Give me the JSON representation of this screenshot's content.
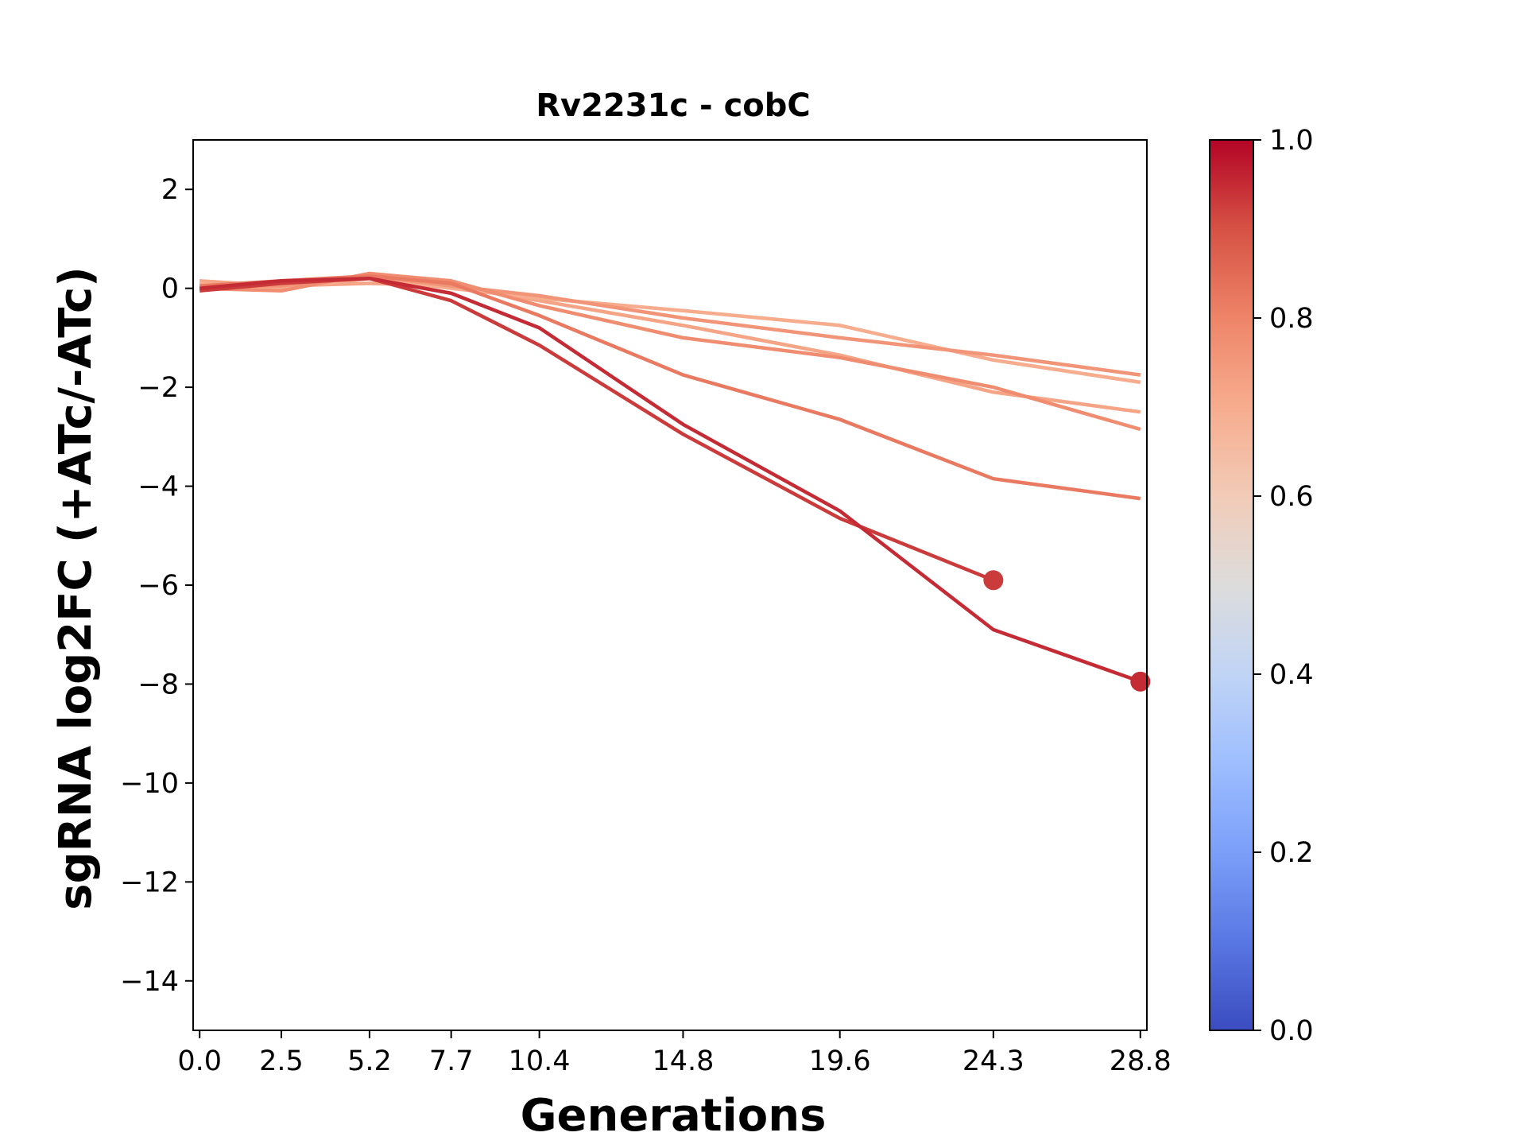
{
  "chart_data": {
    "type": "line",
    "title": "Rv2231c - cobC",
    "xlabel": "Generations",
    "ylabel": "sgRNA log2FC (+ATc/-ATc)",
    "x_tick_labels": [
      "0.0",
      "2.5",
      "5.2",
      "7.7",
      "10.4",
      "14.8",
      "19.6",
      "24.3",
      "28.8"
    ],
    "x": [
      0.0,
      2.5,
      5.2,
      7.7,
      10.4,
      14.8,
      19.6,
      24.3,
      28.8
    ],
    "xlim": [
      -0.2,
      29.0
    ],
    "ylim": [
      -15,
      3
    ],
    "y_ticks": [
      2,
      0,
      -2,
      -4,
      -6,
      -8,
      -10,
      -12,
      -14
    ],
    "y_tick_labels": [
      "2",
      "0",
      "−2",
      "−4",
      "−6",
      "−8",
      "−10",
      "−12",
      "−14"
    ],
    "grid": false,
    "series": [
      {
        "color_value": 0.72,
        "values": [
          0.15,
          0.05,
          0.1,
          0.05,
          -0.25,
          -0.75,
          -1.35,
          -2.1,
          -2.5
        ],
        "endpoint_marker": false
      },
      {
        "color_value": 0.7,
        "values": [
          0.1,
          0.0,
          0.2,
          0.0,
          -0.2,
          -0.45,
          -0.75,
          -1.45,
          -1.9
        ],
        "endpoint_marker": false
      },
      {
        "color_value": 0.76,
        "values": [
          0.05,
          0.05,
          0.25,
          0.05,
          -0.15,
          -0.6,
          -1.0,
          -1.35,
          -1.75
        ],
        "endpoint_marker": false
      },
      {
        "color_value": 0.78,
        "values": [
          0.0,
          -0.05,
          0.3,
          0.15,
          -0.35,
          -1.0,
          -1.4,
          -2.0,
          -2.85
        ],
        "endpoint_marker": false
      },
      {
        "color_value": 0.82,
        "values": [
          0.05,
          0.15,
          0.25,
          0.1,
          -0.55,
          -1.75,
          -2.65,
          -3.85,
          -4.25
        ],
        "endpoint_marker": false
      },
      {
        "color_value": 0.93,
        "values": [
          -0.05,
          0.1,
          0.2,
          -0.25,
          -1.15,
          -2.95,
          -4.65,
          -5.9,
          null
        ],
        "endpoint_marker": true
      },
      {
        "color_value": 0.95,
        "values": [
          0.0,
          0.15,
          0.2,
          -0.1,
          -0.8,
          -2.75,
          -4.5,
          -6.9,
          -7.95
        ],
        "endpoint_marker": true
      }
    ],
    "colorbar": {
      "colormap": "coolwarm",
      "min": 0.0,
      "max": 1.0,
      "ticks": [
        0.0,
        0.2,
        0.4,
        0.6,
        0.8,
        1.0
      ],
      "tick_labels": [
        "0.0",
        "0.2",
        "0.4",
        "0.6",
        "0.8",
        "1.0"
      ],
      "stops": [
        {
          "offset": 0.0,
          "color": "#3b4cc0"
        },
        {
          "offset": 0.1,
          "color": "#5977e3"
        },
        {
          "offset": 0.2,
          "color": "#7b9ff9"
        },
        {
          "offset": 0.3,
          "color": "#9ebeff"
        },
        {
          "offset": 0.4,
          "color": "#c0d4f5"
        },
        {
          "offset": 0.5,
          "color": "#dddcdc"
        },
        {
          "offset": 0.6,
          "color": "#f2cbb7"
        },
        {
          "offset": 0.7,
          "color": "#f7ac8e"
        },
        {
          "offset": 0.8,
          "color": "#ee8468"
        },
        {
          "offset": 0.9,
          "color": "#d65244"
        },
        {
          "offset": 1.0,
          "color": "#b40426"
        }
      ]
    }
  }
}
